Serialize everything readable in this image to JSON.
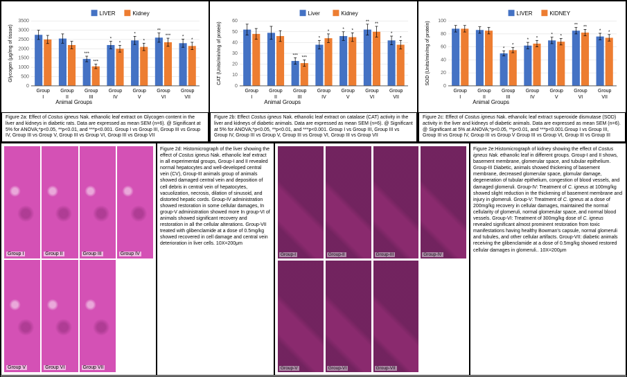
{
  "colors": {
    "liver": "#4472c4",
    "kidney": "#ed7d31",
    "grid": "#d9d9d9",
    "axis": "#595959",
    "text": "#000000",
    "histo_liver": "#d451b5",
    "histo_kidney": "#8a2a6e"
  },
  "charts": {
    "a": {
      "legend_liver": "LIVER",
      "legend_kidney": "Kidney",
      "ylabel": "Glycogen (μg/mg of tissue)",
      "xlabel": "Animal Groups",
      "ylim": [
        0,
        3500
      ],
      "ytick_step": 500,
      "categories": [
        "Group I",
        "Group II",
        "Group III",
        "Group IV",
        "Group V",
        "Group VI",
        "Group VII"
      ],
      "cat_short": [
        "Group\nI",
        "Group\nII",
        "Group\nIII",
        "Group\nIV",
        "Group\nV",
        "Group\nVI",
        "Group\nVII"
      ],
      "liver": [
        2750,
        2550,
        1450,
        2200,
        2450,
        2600,
        2300
      ],
      "kidney": [
        2500,
        2200,
        1050,
        2000,
        2100,
        2350,
        2150
      ],
      "liver_err": [
        250,
        250,
        150,
        200,
        220,
        250,
        220
      ],
      "kidney_err": [
        220,
        200,
        120,
        180,
        200,
        220,
        200
      ],
      "sig_liver": [
        "",
        "",
        "***",
        "*",
        "*",
        "**",
        "*"
      ],
      "sig_kidney": [
        "",
        "",
        "***",
        "*",
        "*",
        "***",
        "*"
      ]
    },
    "b": {
      "legend_liver": "Liver",
      "legend_kidney": "Kidney",
      "ylabel": "CAT (Units/min/mg of protein)",
      "xlabel": "Animal Groups",
      "ylim": [
        0,
        60
      ],
      "ytick_step": 10,
      "categories": [
        "Group I",
        "Group II",
        "Group III",
        "Group IV",
        "Group V",
        "Group VI",
        "Group VII"
      ],
      "liver": [
        52,
        49,
        23,
        38,
        46,
        52,
        42
      ],
      "kidney": [
        48,
        46,
        21,
        44,
        45,
        50,
        38
      ],
      "liver_err": [
        5,
        6,
        3,
        4,
        4,
        5,
        4
      ],
      "kidney_err": [
        5,
        5,
        3,
        4,
        4,
        5,
        4
      ],
      "sig_liver": [
        "",
        "",
        "***",
        "*",
        "*",
        "**",
        "*"
      ],
      "sig_kidney": [
        "",
        "",
        "***",
        "*",
        "*",
        "**",
        "*"
      ]
    },
    "c": {
      "legend_liver": "LIVER",
      "legend_kidney": "KIDNEY",
      "ylabel": "SOD (Units/min/mg of protein)",
      "xlabel": "Animal Groups",
      "ylim": [
        0,
        100
      ],
      "ytick_step": 20,
      "categories": [
        "Group I",
        "Group II",
        "Group III",
        "Group IV",
        "Group V",
        "Group VI",
        "Group VII"
      ],
      "liver": [
        88,
        86,
        50,
        62,
        70,
        85,
        76
      ],
      "kidney": [
        88,
        85,
        55,
        65,
        68,
        82,
        74
      ],
      "liver_err": [
        5,
        5,
        4,
        5,
        5,
        5,
        5
      ],
      "kidney_err": [
        5,
        5,
        4,
        5,
        5,
        5,
        5
      ],
      "sig_liver": [
        "",
        "",
        "*",
        "*",
        "*",
        "**",
        "*"
      ],
      "sig_kidney": [
        "",
        "",
        "*",
        "*",
        "*",
        "**",
        "*"
      ]
    }
  },
  "captions": {
    "a": "Figure 2a: Effect of <em>Costus igneus</em> Nak. ethanolic leaf extract on Glycogen content in the liver and kidneys in diabetic rats. Data are expressed as mean SEM (n=6). @ Significant at 5% for ANOVA;*p<0.05, **p<0.01, and ***p<0.001. Group I vs Group III, Group III  vs Group IV, Group III  vs Group V, Group III  vs Group VI, Group III  vs Group VII",
    "b": "Figure 2b: Effect <em>Costus igneus</em> Nak. ethanolic leaf extract on catalase (CAT) activity in the liver and kidneys of diabetic animals. Data are expressed as mean SEM (n=6). @ Significant at 5% for ANOVA;*p<0.05, **p<0.01, and ***p<0.001. Group I vs Group III, Group III  vs Group IV, Group III  vs Group V, Group III  vs Group VI, Group III  vs Group VII",
    "c": "Figure 2c: Effect of <em>Costus igneus</em> Nak. ethanolic leaf extract superoxide dismutase (SOD) activity in the liver and kidneys of diabetic animals. Data are expressed as mean SEM (n=6). @ Significant at 5% at ANOVA;*p<0.05, **p<0.01, and ***p<0.001.Group I vs Group III, Group III  vs Group IV, Group III  vs Group V Group III  vs Group VI, Group III  vs Group III"
  },
  "histo": {
    "d_caption": "Figure 2d: Histomicrograph of the liver showing the effect of <em>Costus igneus</em> Nak. ethanolic leaf extract in all experimental groups, Group-I and II revealed normal hepatocytes and well-developed central vein (CV), Group-III animals group of animals showed damaged central vein and deposition of cell debris in central vein of hepatocytes, vacuolization, necrosis, dilation of sinusoid, and distorted hepatic cords. Group-IV administration showed restoration in some cellular damages, In group-V administration showed more In group-VI of animals showed significant recovery and restoration in all the cellular alterations. Group-VII treated with glibenclamide at a dose of 0.5mg/kg showed recovered in cell damage and central vein deterioration in liver cells. 10X=200μm",
    "e_caption": "Figure 2e:Histomicrograph of kidney showing the effect of <em>Costus igneus Nak.</em> ethanolic leaf in different groups. Group-I and II shows, basement membrane, glomerular space, and tubular epithelium. Group-III Diabetic, animals showed thickening of basement membrane, decreased glomerular space, glomular damage, degeneration of tubular epithelium, congestion of blood vessels, and damaged glomeruli. Group-IV: Treatment of <em>C. igneus</em> at 100mg/kg showed slight reduction in the thickening of basement membrane and injury in glomeruli. Group-V: Treatment of <em>C. igneus</em> at a dose of 200mg/kg recovery in cellular damages, maintained the normal cellularity of glomeruli, normal glomerular space, and normal blood vessels. Group-VI: Treatment of 300mg/kg dose of <em>C. igneus</em> revealed significant almost prominent restoration from toxic manifestations having healthy Bowman's capsule, normal glomeruli and tubules, and other cellular artifacts. Group-VII: diabetic animals receiving the glibenclamide at a dose of 0.5mg/kg showed restored cellular damages in glomeruli.. 10X=200μm",
    "liver_labels": [
      "Group I",
      "Group II",
      "Group III",
      "Group IV",
      "Group V",
      "Group VI",
      "Group VII"
    ],
    "kidney_labels": [
      "Group-I",
      "Group-II",
      "Group-III",
      "Group-IV",
      "Group-V",
      "Group-VI",
      "Group-VII"
    ]
  }
}
